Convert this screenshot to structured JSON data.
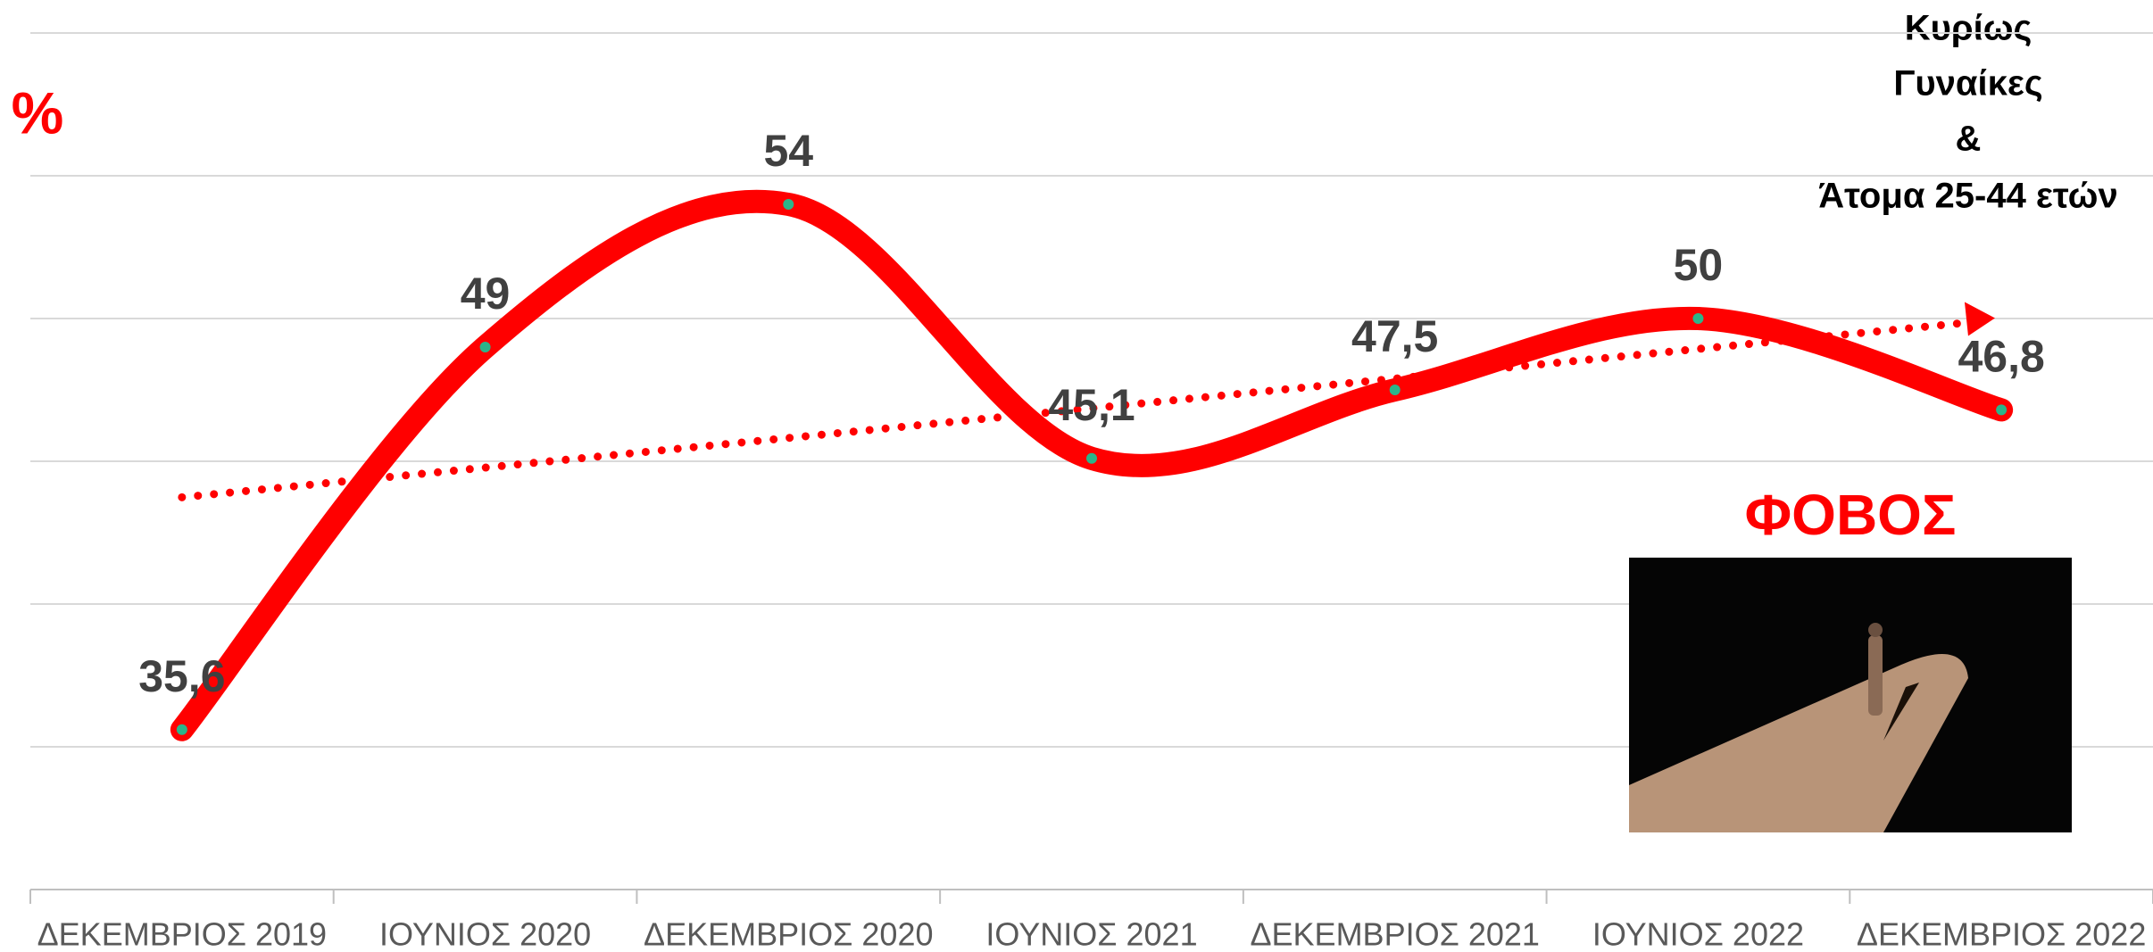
{
  "chart_data": {
    "type": "line",
    "annotations": [
      "%",
      "Κυρίως",
      "Γυναίκες",
      "&",
      "Άτομα 25-44 ετών",
      "ΦΟΒΟΣ"
    ],
    "categories": [
      "ΔΕΚΕΜΒΡΙΟΣ 2019",
      "ΙΟΥΝΙΟΣ 2020",
      "ΔΕΚΕΜΒΡΙΟΣ 2020",
      "ΙΟΥΝΙΟΣ 2021",
      "ΔΕΚΕΜΒΡΙΟΣ 2021",
      "ΙΟΥΝΙΟΣ 2022",
      "ΔΕΚΕΜΒΡΙΟΣ 2022"
    ],
    "values": [
      35.6,
      49,
      54,
      45.1,
      47.5,
      50,
      46.8
    ],
    "value_labels": [
      "35,6",
      "49",
      "54",
      "45,1",
      "47,5",
      "50",
      "46,8"
    ],
    "color": "#ff0000",
    "ylim": [
      30,
      60
    ],
    "yticks": [
      30,
      35,
      40,
      45,
      50,
      55,
      60
    ],
    "grid": true,
    "trendline": true
  }
}
